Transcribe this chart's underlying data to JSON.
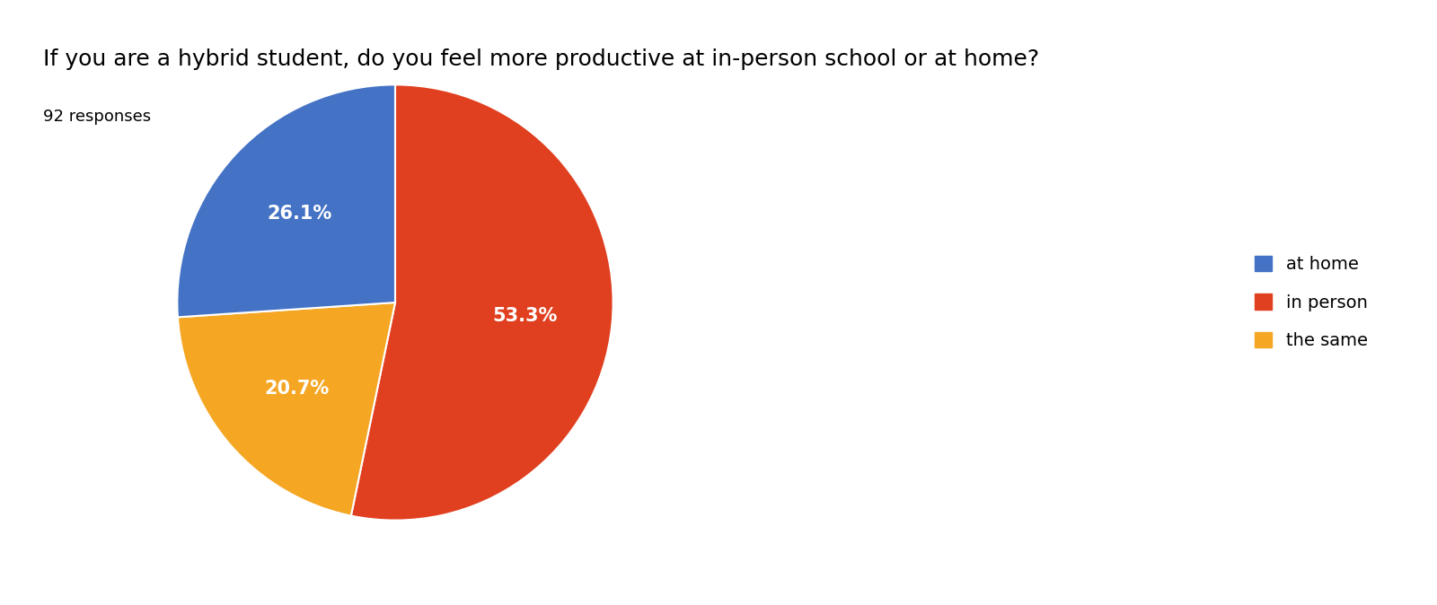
{
  "title": "If you are a hybrid student, do you feel more productive at in-person school or at home?",
  "subtitle": "92 responses",
  "labels": [
    "at home",
    "in person",
    "the same"
  ],
  "values": [
    26.1,
    53.3,
    20.7
  ],
  "colors": [
    "#4472C4",
    "#E04020",
    "#F5A623"
  ],
  "pct_labels": [
    "26.1%",
    "53.3%",
    "20.7%"
  ],
  "text_color": "#FFFFFF",
  "title_fontsize": 18,
  "subtitle_fontsize": 13,
  "legend_fontsize": 14,
  "pct_fontsize": 15,
  "background_color": "#FFFFFF"
}
